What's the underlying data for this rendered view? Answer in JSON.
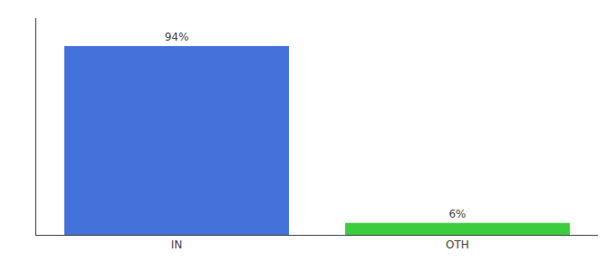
{
  "chart_data": {
    "type": "bar",
    "categories": [
      "IN",
      "OTH"
    ],
    "values": [
      94,
      6
    ],
    "value_labels": [
      "94%",
      "6%"
    ],
    "data_labels": true,
    "colors": [
      "#4472db",
      "#3dcc3d"
    ],
    "ylim": [
      0,
      108
    ],
    "grid": false,
    "tick_labels": "x"
  }
}
